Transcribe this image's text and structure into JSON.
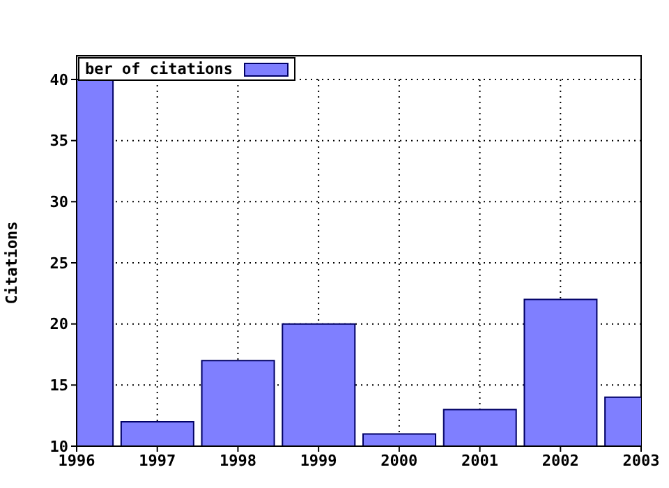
{
  "chart_data": {
    "type": "bar",
    "ylabel": "Citations",
    "x": [
      1996,
      1997,
      1998,
      1999,
      2000,
      2001,
      2002,
      2003
    ],
    "series": [
      {
        "name": "ber of citations",
        "color": "#7f7fff",
        "values": [
          40,
          12,
          17,
          20,
          11,
          13,
          22,
          14
        ]
      }
    ],
    "xlim": [
      1996,
      2003
    ],
    "xticks": [
      1996,
      1997,
      1998,
      1999,
      2000,
      2001,
      2002,
      2003
    ],
    "ylim": [
      10,
      40
    ],
    "yticks": [
      10,
      15,
      20,
      25,
      30,
      35,
      40
    ],
    "grid": true,
    "legend": "top left"
  }
}
